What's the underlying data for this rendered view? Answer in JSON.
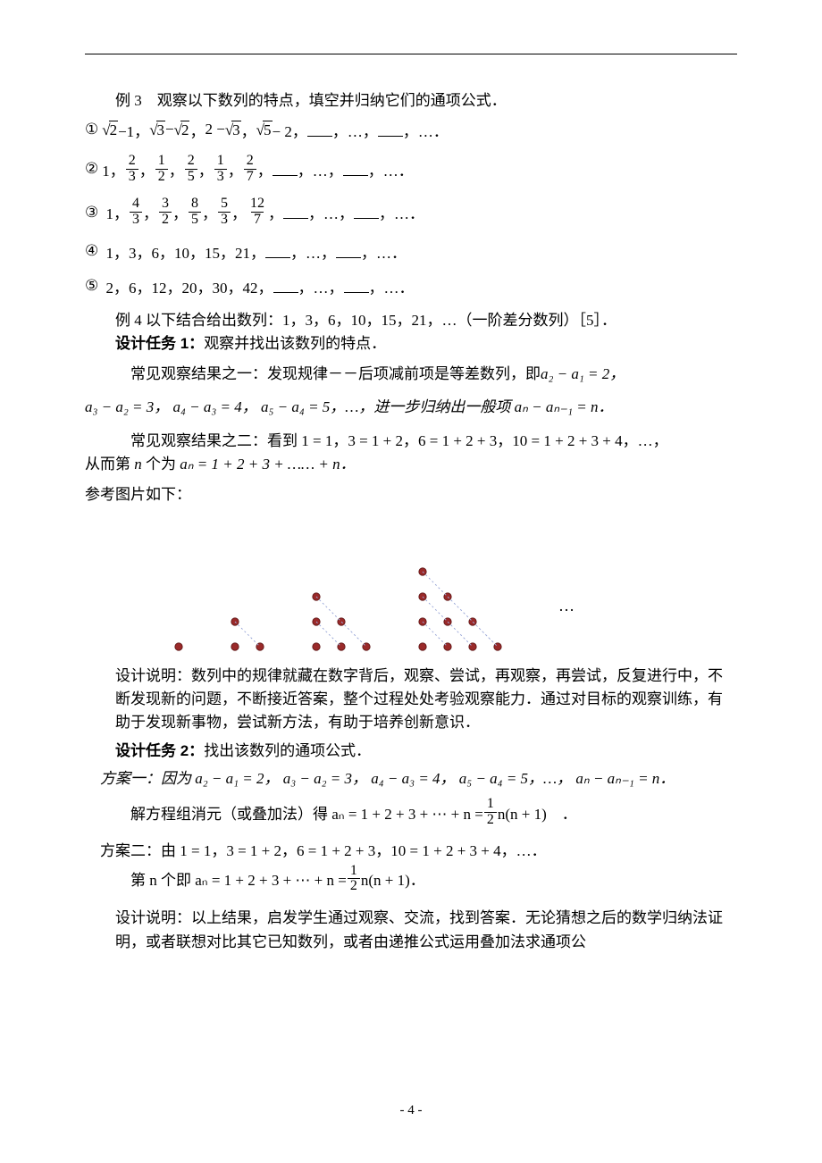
{
  "ex3_title": "例 3　观察以下数列的特点，填空并归纳它们的通项公式．",
  "circled": [
    "①",
    "②",
    "③",
    "④",
    "⑤"
  ],
  "seq1_fracs": [
    [
      "2",
      "3"
    ],
    [
      "1",
      "2"
    ],
    [
      "2",
      "5"
    ],
    [
      "1",
      "3"
    ],
    [
      "2",
      "7"
    ]
  ],
  "seq3_fracs": [
    [
      "4",
      "3"
    ],
    [
      "3",
      "2"
    ],
    [
      "8",
      "5"
    ],
    [
      "5",
      "3"
    ],
    [
      "12",
      "7"
    ]
  ],
  "seq4": "1，3，6，10，15，21，",
  "seq5": "2，6，12，20，30，42，",
  "tail_blanks": "，…，",
  "tail_end": "，…．",
  "ex4_intro": "例 4 以下结合给出数列：1，3，6，10，15，21，…（一阶差分数列）［5］．",
  "task1_label": "设计任务 1：",
  "task1_text": "观察并找出该数列的特点．",
  "obs1_a": "常见观察结果之一：发现规律－－后项减前项是等差数列，即",
  "obs1_diffs": "a₂ − a₁ = 2，",
  "obs1_line2_a": "a₃ − a₂ = 3， a₄ − a₃ = 4， a₅ − a₄ = 5，…，进一步归纳出一般项 ",
  "obs1_line2_b": "aₙ − aₙ₋₁ = n．",
  "obs2_a": "常见观察结果之二：看到 1 = 1，3 = 1 + 2，6 = 1 + 2 + 3，10 = 1 + 2 + 3 + 4，…，",
  "obs2_b_a": "从而第 ",
  "obs2_b_b": " 个为 ",
  "obs2_b_c": "aₙ = 1 + 2 + 3 + …… + n．",
  "ref_img": "参考图片如下：",
  "explain1": "设计说明：数列中的规律就藏在数字背后，观察、尝试，再观察，再尝试，反复进行中，不断发现新的问题，不断接近答案，整个过程处处考验观察能力．通过对目标的观察训练，有助于发现新事物，尝试新方法，有助于培养创新意识．",
  "task2_label": "设计任务 2：",
  "task2_text": "找出该数列的通项公式．",
  "plan1_a": "方案一：因为  a₂ − a₁ = 2， a₃ − a₂ = 3， a₄ − a₃ = 4， a₅ − a₄ = 5，…， aₙ − aₙ₋₁ = n．",
  "plan1_b_pre": "解方程组消元（或叠加法）得 aₙ = 1 + 2 + 3 + ⋯ + n = ",
  "plan1_b_post": " n(n + 1)　．",
  "plan2_a": "方案二：由 1 = 1，3 = 1 + 2，6 = 1 + 2 + 3，10 = 1 + 2 + 3 + 4，…．",
  "plan2_b_pre": "第 n 个即 aₙ = 1 + 2 + 3 + ⋯ + n = ",
  "plan2_b_post": " n(n + 1)．",
  "explain2": "设计说明：以上结果，启发学生通过观察、交流，找到答案．无论猜想之后的数学归纳法证明，或者联想对比其它已知数列，或者由递推公式运用叠加法求通项公",
  "page_no": "- 4 -",
  "n_var": "n",
  "diagram": {
    "dot_radius": 4.2,
    "dot_fill": "#9a2a2a",
    "dot_stroke": "#5a1212",
    "line_color": "#9aa8d8",
    "line_width": 0.8,
    "ellipsis": "…",
    "dash": "2,3",
    "spacing": 28,
    "group_gap": 35,
    "groups": [
      1,
      2,
      3,
      4
    ]
  }
}
